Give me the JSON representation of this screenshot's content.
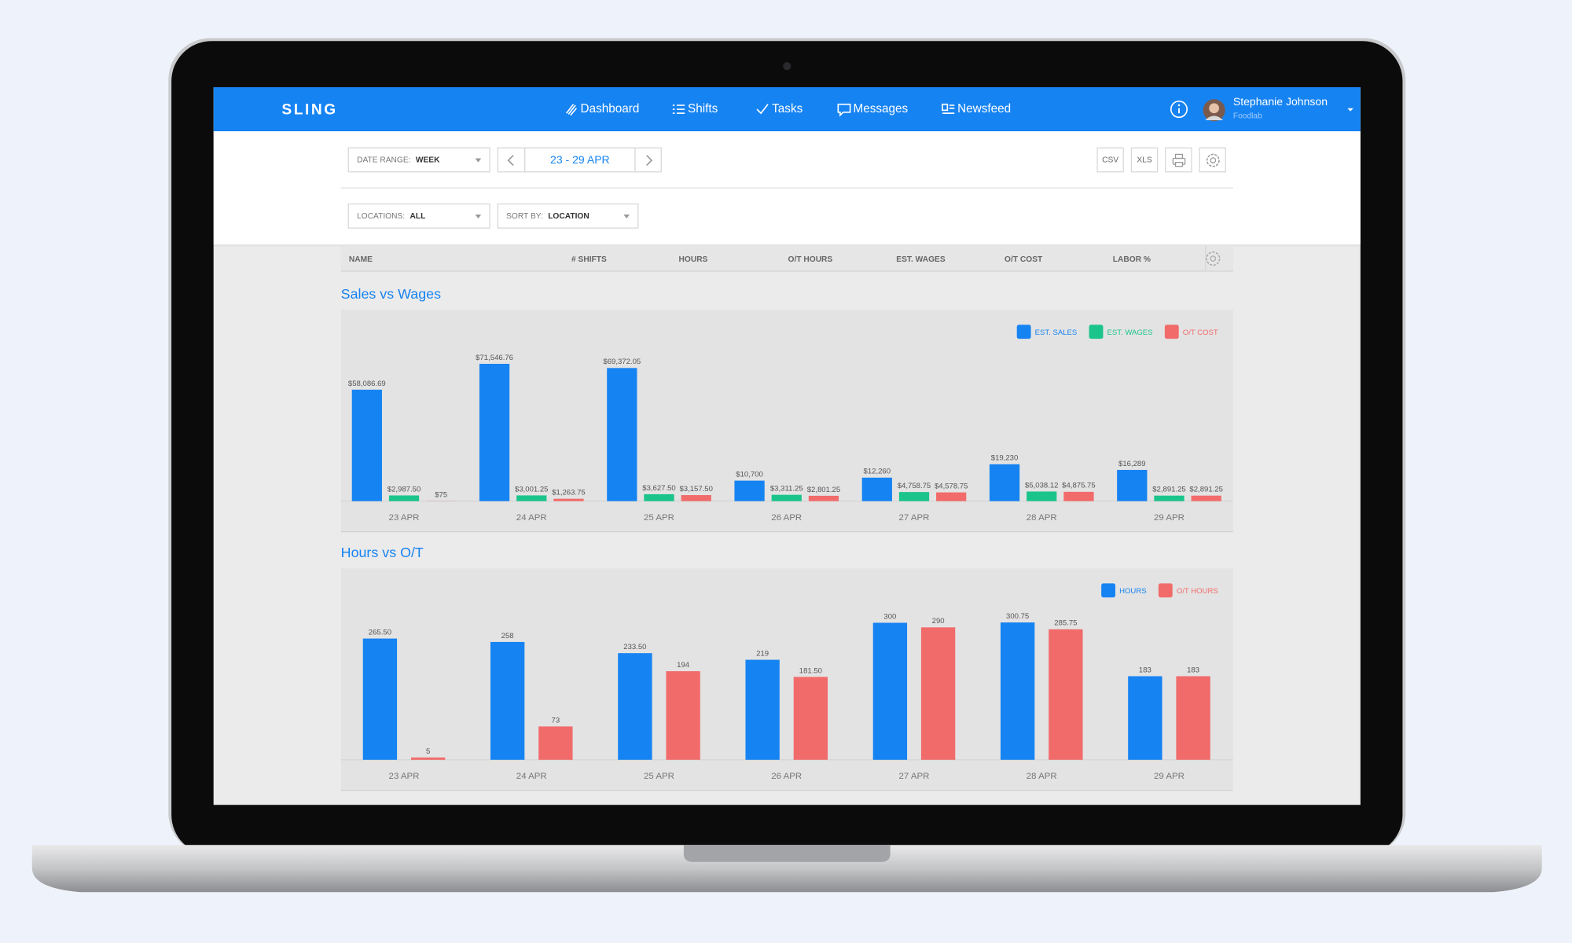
{
  "header": {
    "brand": "SLING",
    "nav": [
      "Dashboard",
      "Shifts",
      "Tasks",
      "Messages",
      "Newsfeed"
    ],
    "user": {
      "name": "Stephanie Johnson",
      "org": "Foodlab"
    }
  },
  "toolbar": {
    "date_range_label": "DATE RANGE:",
    "date_range": "WEEK",
    "period": "23 - 29 APR",
    "exports": [
      "CSV",
      "XLS"
    ],
    "locations_label": "LOCATIONS:",
    "locations": "ALL",
    "sort_label": "SORT BY:",
    "sort": "LOCATION"
  },
  "table": {
    "columns": [
      "NAME",
      "# SHIFTS",
      "HOURS",
      "O/T HOURS",
      "EST. WAGES",
      "O/T COST",
      "LABOR %"
    ]
  },
  "chart_data": [
    {
      "type": "bar",
      "title": "Sales vs Wages",
      "legend": "top-right",
      "categories": [
        "23 APR",
        "24 APR",
        "25 APR",
        "26 APR",
        "27 APR",
        "28 APR",
        "29 APR"
      ],
      "series": [
        {
          "name": "EST. SALES",
          "color": "#1683f2",
          "values": [
            58086.69,
            71546.76,
            69372.05,
            10700,
            12260,
            19230,
            16289
          ],
          "value_labels": [
            "$58,086.69",
            "$71,546.76",
            "$69,372.05",
            "$10,700",
            "$12,260",
            "$19,230",
            "$16,289"
          ]
        },
        {
          "name": "EST. WAGES",
          "color": "#1bc48b",
          "values": [
            2987.5,
            3001.25,
            3627.5,
            3311.25,
            4758.75,
            5038.12,
            2891.25
          ],
          "value_labels": [
            "$2,987.50",
            "$3,001.25",
            "$3,627.50",
            "$3,311.25",
            "$4,758.75",
            "$5,038.12",
            "$2,891.25"
          ]
        },
        {
          "name": "O/T COST",
          "color": "#f26b6b",
          "values": [
            75,
            1263.75,
            3157.5,
            2801.25,
            4578.75,
            4875.75,
            2891.25
          ],
          "value_labels": [
            "$75",
            "$1,263.75",
            "$3,157.50",
            "$2,801.25",
            "$4,578.75",
            "$4,875.75",
            "$2,891.25"
          ]
        }
      ]
    },
    {
      "type": "bar",
      "title": "Hours vs O/T",
      "legend": "top-right",
      "categories": [
        "23 APR",
        "24 APR",
        "25 APR",
        "26 APR",
        "27 APR",
        "28 APR",
        "29 APR"
      ],
      "series": [
        {
          "name": "HOURS",
          "color": "#1683f2",
          "values": [
            265.5,
            258,
            233.5,
            219,
            300,
            300.75,
            183
          ],
          "value_labels": [
            "265.50",
            "258",
            "233.50",
            "219",
            "300",
            "300.75",
            "183"
          ]
        },
        {
          "name": "O/T HOURS",
          "color": "#f26b6b",
          "values": [
            5,
            73,
            194,
            181.5,
            290,
            285.75,
            183
          ],
          "value_labels": [
            "5",
            "73",
            "194",
            "181.50",
            "290",
            "285.75",
            "183"
          ]
        }
      ]
    }
  ]
}
